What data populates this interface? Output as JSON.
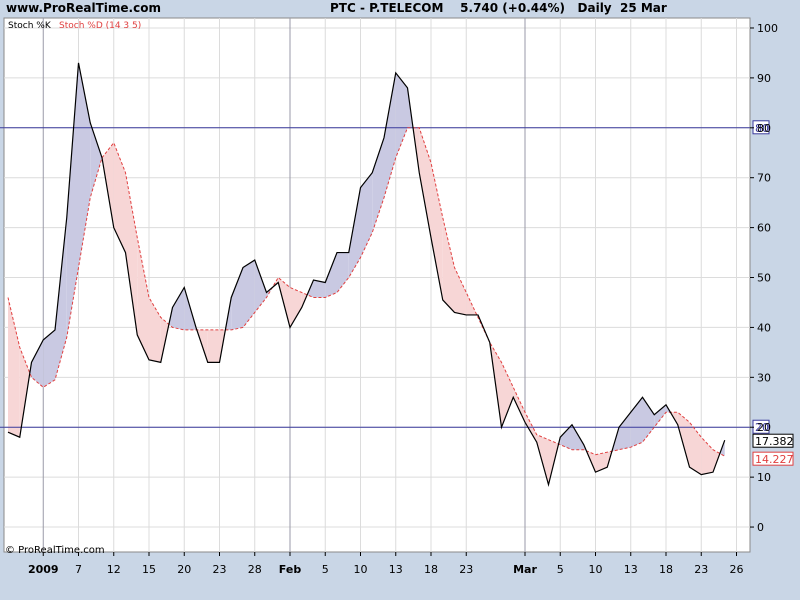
{
  "header": {
    "site": "www.ProRealTime.com",
    "instrument": "PTC - P.TELECOM",
    "price": "5.740 (+0.44%)",
    "period": "Daily  25 Mar"
  },
  "footer": {
    "copyright": "© ProRealTime.com"
  },
  "colors": {
    "k_line": "#000000",
    "d_line": "#e04040",
    "fill_k_above": "#c9c9e2",
    "fill_d_above": "#f7d6d6",
    "ref_line": "#3a3a9c",
    "grid": "#dcdcdc",
    "major_grid": "#9a9aa8",
    "page_bg": "#c9d6e6",
    "plot_bg": "#ffffff"
  },
  "chart_data": {
    "type": "line",
    "legend": {
      "k": "Stoch %K",
      "d": "Stoch %D (14 3 5)",
      "placement": "top-left"
    },
    "ylim": [
      -5,
      102
    ],
    "y_ticks": [
      0,
      10,
      20,
      30,
      40,
      50,
      60,
      70,
      80,
      90,
      100
    ],
    "reference_lines": [
      {
        "value": 80,
        "label": "80"
      },
      {
        "value": 20,
        "label": "20"
      }
    ],
    "last_values": {
      "k": "17.382",
      "d": "14.227"
    },
    "x_labels": [
      {
        "label": "2009",
        "index": 3,
        "major": true
      },
      {
        "label": "7",
        "index": 6
      },
      {
        "label": "12",
        "index": 9
      },
      {
        "label": "15",
        "index": 12
      },
      {
        "label": "20",
        "index": 15
      },
      {
        "label": "23",
        "index": 18
      },
      {
        "label": "28",
        "index": 21
      },
      {
        "label": "Feb",
        "index": 24,
        "major": true
      },
      {
        "label": "5",
        "index": 27
      },
      {
        "label": "10",
        "index": 30
      },
      {
        "label": "13",
        "index": 33
      },
      {
        "label": "18",
        "index": 36
      },
      {
        "label": "23",
        "index": 39
      },
      {
        "label": "Mar",
        "index": 44,
        "major": true
      },
      {
        "label": "5",
        "index": 47
      },
      {
        "label": "10",
        "index": 50
      },
      {
        "label": "13",
        "index": 53
      },
      {
        "label": "18",
        "index": 56
      },
      {
        "label": "23",
        "index": 59
      },
      {
        "label": "26",
        "index": 62
      }
    ],
    "k_values": [
      19,
      18,
      33,
      37.5,
      39.5,
      62,
      93,
      81,
      74,
      60,
      55,
      38.5,
      33.5,
      33,
      44,
      48,
      40,
      33,
      33,
      46,
      52,
      53.5,
      47,
      49,
      40,
      44,
      49.5,
      49,
      55,
      55,
      68,
      71,
      78,
      91,
      88,
      71,
      58,
      45.5,
      43,
      42.5,
      42.5,
      37,
      20,
      26,
      21,
      17,
      8.5,
      18,
      20.5,
      16.5,
      11,
      12,
      20,
      23,
      26,
      22.5,
      24.5,
      20.5,
      12,
      10.5,
      11,
      17.4
    ],
    "d_values": [
      46,
      36,
      30,
      28,
      29.5,
      38,
      52,
      66,
      74,
      77,
      71,
      58,
      46,
      42,
      40,
      39.5,
      39.5,
      39.5,
      39.5,
      39.5,
      40,
      43,
      46,
      50,
      48,
      47,
      46,
      46,
      47,
      50,
      54,
      59,
      66,
      74,
      80,
      80,
      73,
      62,
      52,
      47,
      42,
      37,
      33,
      28,
      23,
      18.5,
      17.5,
      16.5,
      15.5,
      15.5,
      14.5,
      15,
      15.5,
      16,
      17,
      20,
      23,
      23,
      21,
      18,
      15.5,
      14.2
    ]
  }
}
